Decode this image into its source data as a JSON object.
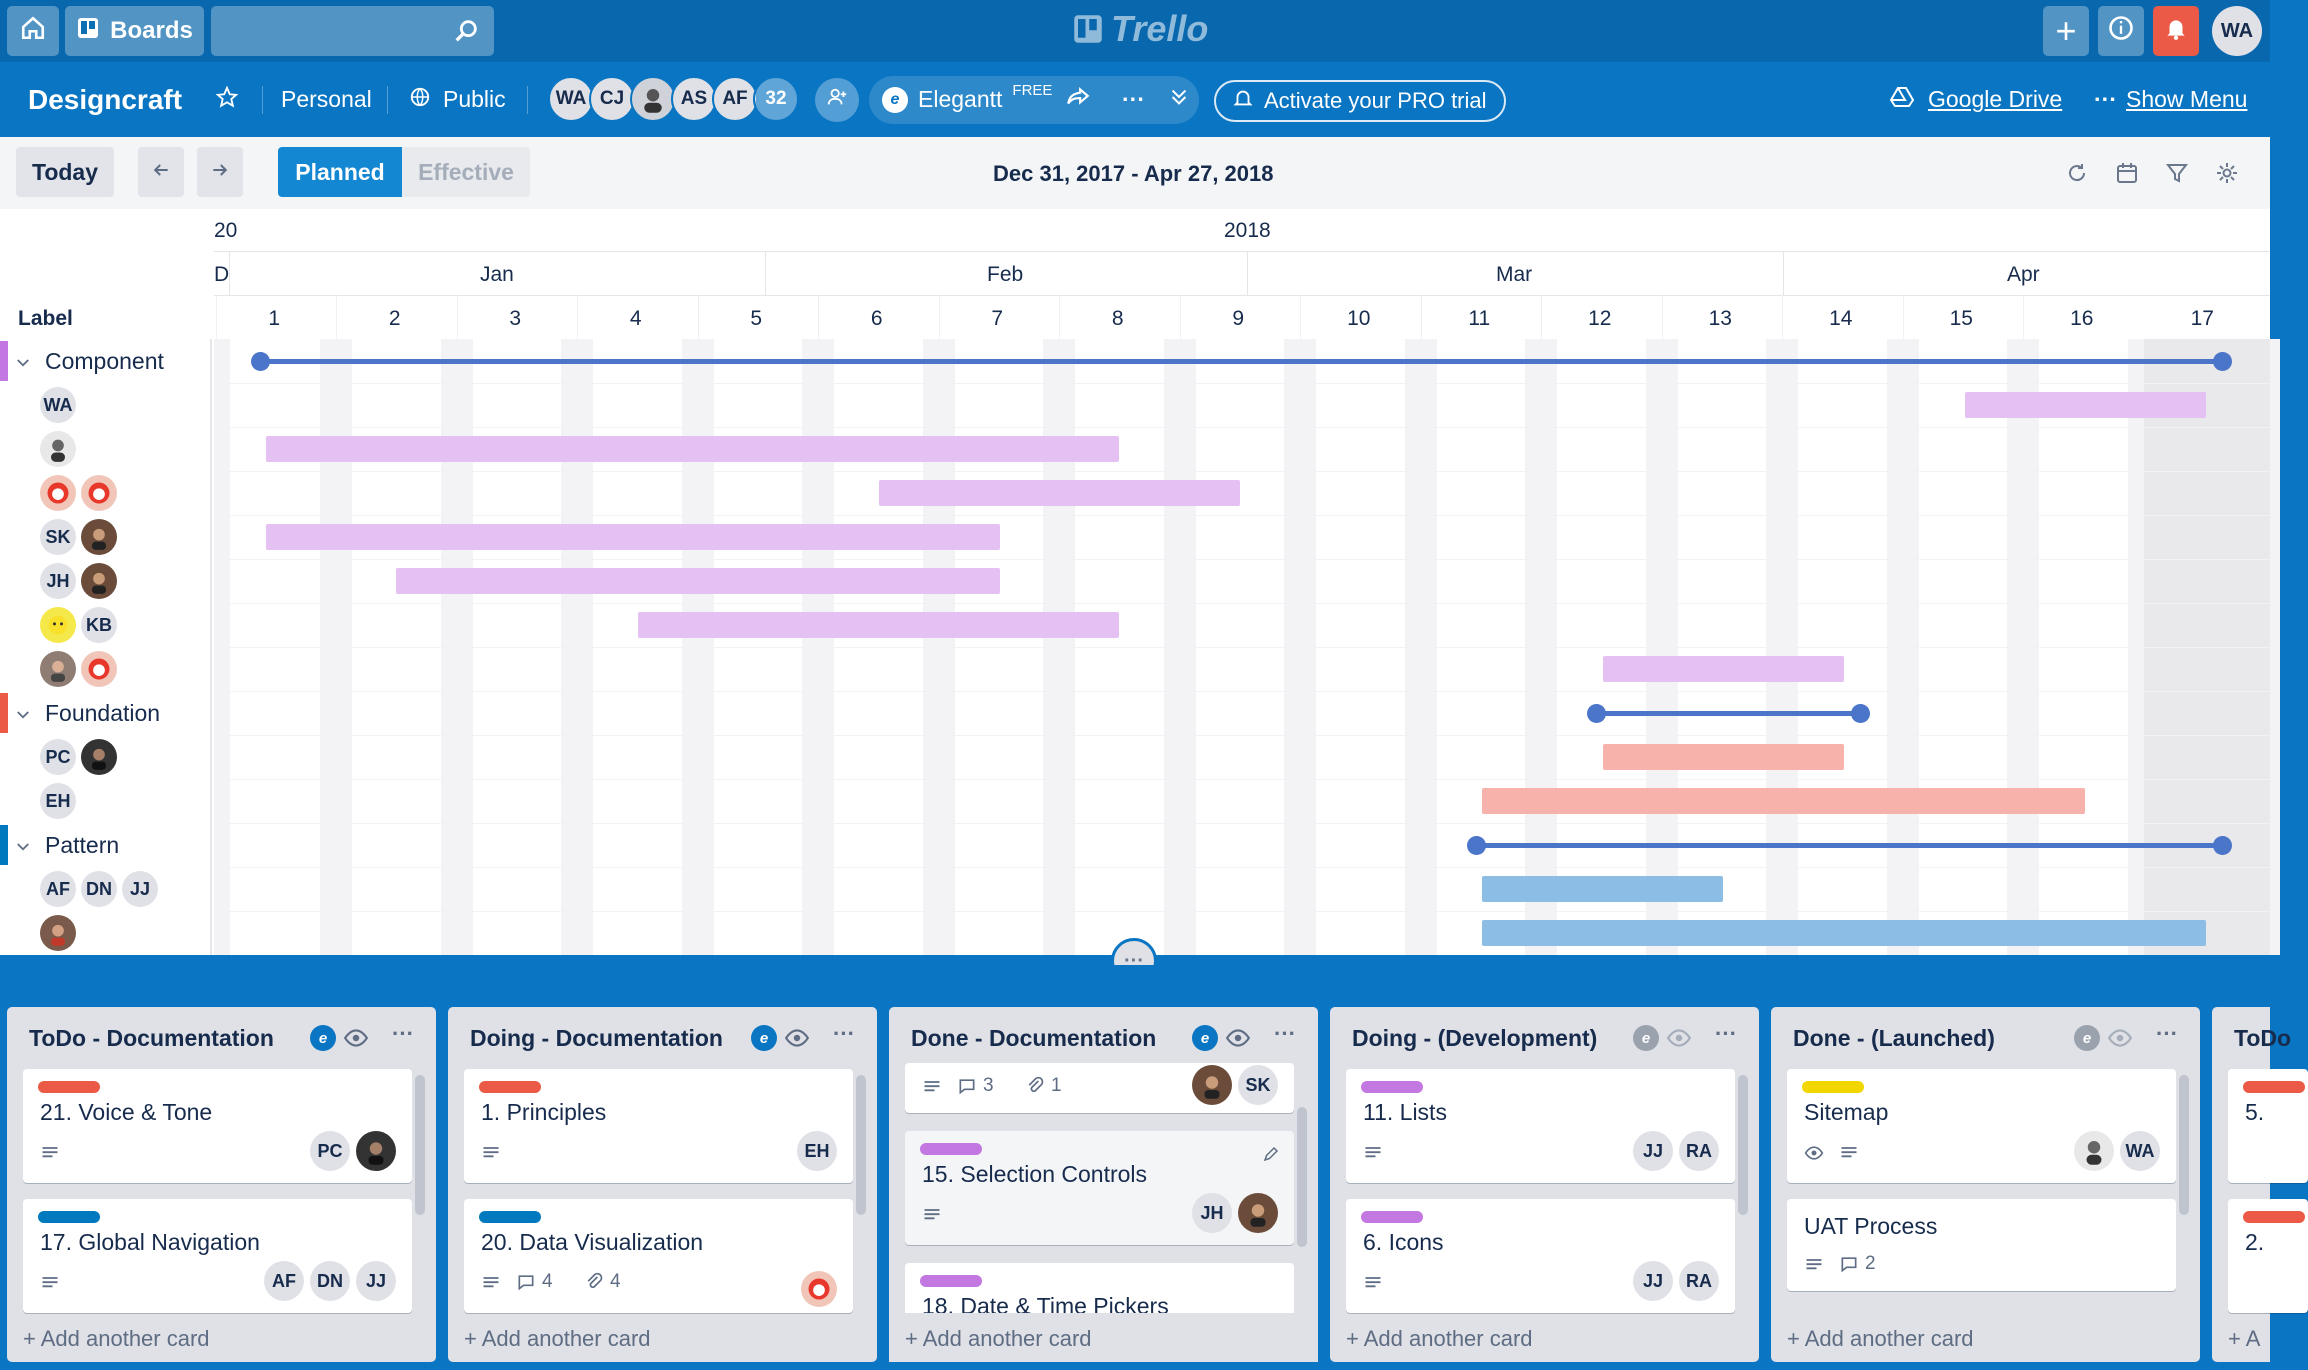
{
  "topbar": {
    "boards_label": "Boards",
    "logo": "Trello",
    "user_initials": "WA"
  },
  "board": {
    "name": "Designcraft",
    "team": "Personal",
    "visibility": "Public",
    "members": [
      "WA",
      "CJ",
      "",
      "AS",
      "AF"
    ],
    "member_count": "32",
    "powerup": "Elegantt",
    "powerup_badge": "FREE",
    "more": "···",
    "pro_trial": "Activate your PRO trial",
    "drive": "Google Drive",
    "more_dots": "···",
    "show_menu": "Show Menu"
  },
  "gantt": {
    "today": "Today",
    "planned": "Planned",
    "effective": "Effective",
    "range": "Dec 31, 2017 - Apr 27, 2018",
    "year_prev": "20",
    "year": "2018",
    "month_prev": "D",
    "months": [
      "Jan",
      "Feb",
      "Mar",
      "Apr"
    ],
    "weeks": [
      "1",
      "2",
      "3",
      "4",
      "5",
      "6",
      "7",
      "8",
      "9",
      "10",
      "11",
      "12",
      "13",
      "14",
      "15",
      "16",
      "17"
    ],
    "label_header": "Label",
    "groups": [
      {
        "name": "Component",
        "color": "#c377e0"
      },
      {
        "name": "Foundation",
        "color": "#eb5a46"
      },
      {
        "name": "Pattern",
        "color": "#0079bf"
      }
    ],
    "row_members": {
      "r1": [
        "WA"
      ],
      "r4": [
        "SK"
      ],
      "r5": [
        "JH"
      ],
      "r6": [
        "KB"
      ],
      "r9": [
        "PC"
      ],
      "r10": [
        "EH"
      ],
      "r12": [
        "AF",
        "DN",
        "JJ"
      ]
    },
    "colors": {
      "component": "#e4c0f3",
      "foundation": "#f7b3ab",
      "pattern": "#8bbde5",
      "summary": "#4a75c9"
    }
  },
  "lists": [
    {
      "title": "ToDo - Documentation",
      "cards": [
        {
          "label_color": "#eb5a46",
          "title": "21. Voice & Tone",
          "members": [
            "PC"
          ]
        },
        {
          "label_color": "#0079bf",
          "title": "17. Global Navigation",
          "members": [
            "AF",
            "DN",
            "JJ"
          ]
        }
      ]
    },
    {
      "title": "Doing - Documentation",
      "cards": [
        {
          "label_color": "#eb5a46",
          "title": "1. Principles",
          "members": [
            "EH"
          ]
        },
        {
          "label_color": "#0079bf",
          "title": "20. Data Visualization",
          "comments": "4",
          "attachments": "4"
        }
      ]
    },
    {
      "title": "Done - Documentation",
      "cards": [
        {
          "comments": "3",
          "attachments": "1",
          "members": [
            "SK"
          ]
        },
        {
          "label_color": "#c377e0",
          "title": "15. Selection Controls",
          "members": [
            "JH"
          ]
        },
        {
          "label_color": "#c377e0",
          "title": "18. Date & Time Pickers"
        }
      ]
    },
    {
      "title": "Doing - (Development)",
      "cards": [
        {
          "label_color": "#c377e0",
          "title": "11. Lists",
          "members": [
            "JJ",
            "RA"
          ]
        },
        {
          "label_color": "#c377e0",
          "title": "6. Icons",
          "members": [
            "JJ",
            "RA"
          ]
        }
      ]
    },
    {
      "title": "Done - (Launched)",
      "cards": [
        {
          "label_color": "#f2d600",
          "title": "Sitemap",
          "members": [
            "WA"
          ]
        },
        {
          "title": "UAT Process",
          "comments": "2"
        }
      ]
    },
    {
      "title": "ToDo",
      "cards": [
        {
          "label_color": "#eb5a46",
          "title": "5. "
        },
        {
          "label_color": "#eb5a46",
          "title": "2. "
        }
      ]
    }
  ],
  "add_card": "+ Add another card",
  "add_card_short": "+ A"
}
